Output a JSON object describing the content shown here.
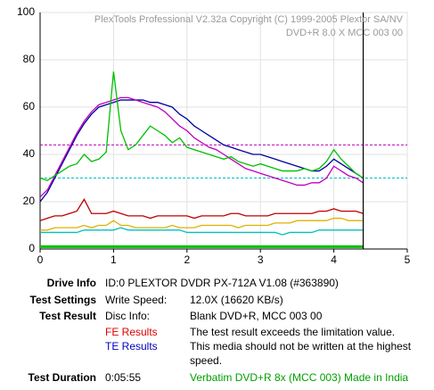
{
  "chart_data": {
    "type": "line",
    "title": "PlexTools Professional V2.32a Copyright (C) 1999-2005 Plextor SA/NV",
    "subtitle": "DVD+R   8.0 X   MCC 003 00",
    "x": [
      0,
      0.1,
      0.2,
      0.3,
      0.4,
      0.5,
      0.6,
      0.7,
      0.8,
      0.9,
      1.0,
      1.1,
      1.2,
      1.3,
      1.4,
      1.5,
      1.6,
      1.7,
      1.8,
      1.9,
      2.0,
      2.1,
      2.2,
      2.3,
      2.4,
      2.5,
      2.6,
      2.7,
      2.8,
      2.9,
      3.0,
      3.1,
      3.2,
      3.3,
      3.4,
      3.5,
      3.6,
      3.7,
      3.8,
      3.9,
      4.0,
      4.1,
      4.2,
      4.3,
      4.4
    ],
    "series": [
      {
        "color": "#0000a0",
        "values": [
          20,
          24,
          30,
          36,
          42,
          48,
          53,
          57,
          60,
          61,
          62,
          63,
          63,
          63,
          63,
          62,
          62,
          61,
          60,
          57,
          55,
          52,
          50,
          48,
          46,
          44,
          43,
          42,
          41,
          40,
          40,
          39,
          38,
          37,
          36,
          35,
          34,
          33,
          33,
          35,
          38,
          36,
          34,
          32,
          30
        ]
      },
      {
        "color": "#c000c0",
        "values": [
          22,
          25,
          31,
          37,
          43,
          49,
          54,
          58,
          61,
          62,
          63,
          64,
          64,
          63,
          62,
          61,
          60,
          58,
          55,
          52,
          50,
          47,
          45,
          43,
          42,
          40,
          38,
          36,
          34,
          33,
          32,
          31,
          30,
          29,
          28,
          27,
          27,
          28,
          28,
          30,
          35,
          33,
          31,
          30,
          28
        ]
      },
      {
        "color": "#00c000",
        "values": [
          30,
          29,
          31,
          33,
          35,
          36,
          40,
          37,
          38,
          41,
          75,
          50,
          42,
          44,
          48,
          52,
          50,
          48,
          45,
          47,
          43,
          42,
          41,
          40,
          39,
          38,
          39,
          37,
          36,
          35,
          36,
          35,
          34,
          33,
          33,
          33,
          34,
          33,
          34,
          37,
          42,
          38,
          35,
          32,
          30
        ]
      },
      {
        "color": "#c00000",
        "values": [
          12,
          13,
          14,
          14,
          15,
          16,
          21,
          15,
          15,
          15,
          16,
          15,
          14,
          14,
          14,
          13,
          14,
          14,
          14,
          14,
          14,
          13,
          14,
          14,
          14,
          14,
          15,
          15,
          14,
          14,
          14,
          14,
          15,
          15,
          15,
          15,
          15,
          15,
          16,
          16,
          17,
          16,
          16,
          16,
          15
        ]
      },
      {
        "color": "#e0b000",
        "values": [
          8,
          8,
          9,
          9,
          9,
          9,
          10,
          9,
          10,
          10,
          12,
          10,
          10,
          9,
          9,
          9,
          9,
          9,
          10,
          9,
          9,
          9,
          10,
          10,
          10,
          10,
          10,
          9,
          10,
          10,
          10,
          10,
          11,
          11,
          11,
          12,
          12,
          12,
          12,
          12,
          13,
          13,
          12,
          12,
          12
        ]
      },
      {
        "color": "#00c0c0",
        "values": [
          7,
          7,
          7,
          7,
          7,
          7,
          8,
          8,
          8,
          8,
          8,
          9,
          8,
          8,
          8,
          8,
          8,
          8,
          8,
          8,
          7,
          7,
          7,
          7,
          7,
          7,
          7,
          7,
          7,
          7,
          7,
          7,
          7,
          6,
          7,
          7,
          7,
          7,
          8,
          8,
          8,
          8,
          8,
          8,
          8
        ]
      },
      {
        "color": "#00c000",
        "values": [
          1,
          1,
          1,
          1,
          1,
          1,
          1,
          1,
          1,
          1,
          1,
          1,
          1,
          1,
          1,
          1,
          1,
          1,
          1,
          1,
          1,
          1,
          1,
          1,
          1,
          1,
          1,
          1,
          1,
          1,
          1,
          1,
          1,
          1,
          1,
          1,
          1,
          1,
          1,
          1,
          1,
          1,
          1,
          1,
          1
        ]
      }
    ],
    "reference_lines": [
      {
        "value": 44,
        "color": "#c000c0"
      },
      {
        "value": 30,
        "color": "#00c0c0"
      }
    ],
    "marker_x": 4.4,
    "xlim": [
      0,
      5
    ],
    "xticks": [
      0,
      1,
      2,
      3,
      4,
      5
    ],
    "ylim": [
      0,
      100
    ],
    "yticks": [
      0,
      20,
      40,
      60,
      80,
      100
    ],
    "grid": true
  },
  "info": {
    "rows": [
      {
        "label": "Drive Info",
        "cells": [
          "ID:0 PLEXTOR DVDR PX-712A V1.08 (#363890)"
        ]
      },
      {
        "label": "Test Settings",
        "cells": [
          "Write Speed:",
          "12.0X (16620 KB/s)"
        ]
      },
      {
        "label": "Test Result",
        "cells": [
          "Disc Info:",
          "Blank DVD+R, MCC 003 00"
        ]
      },
      {
        "cells": [
          "FE Results",
          "The test result exceeds the limitation value."
        ]
      },
      {
        "cells": [
          "TE Results",
          "This media should not be written at the highest",
          "speed."
        ]
      },
      {
        "label": "Test Duration",
        "cells": [
          "0:05:55",
          "Verbatim DVD+R 8x (MCC 003) Made in India"
        ]
      }
    ]
  }
}
